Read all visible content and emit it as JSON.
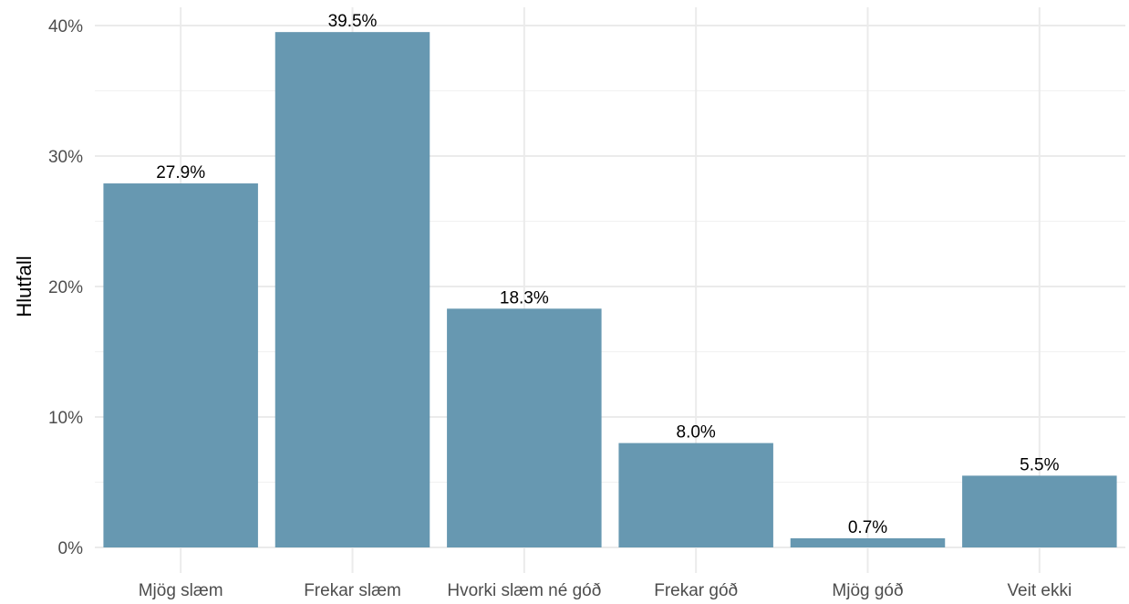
{
  "chart_data": {
    "type": "bar",
    "categories": [
      "Mjög slæm",
      "Frekar slæm",
      "Hvorki slæm né góð",
      "Frekar góð",
      "Mjög góð",
      "Veit ekki"
    ],
    "values": [
      27.9,
      39.5,
      18.3,
      8.0,
      0.7,
      5.5
    ],
    "data_labels": [
      "27.9%",
      "39.5%",
      "18.3%",
      "8.0%",
      "0.7%",
      "5.5%"
    ],
    "title": "",
    "xlabel": "",
    "ylabel": "Hlutfall",
    "ylim": [
      0,
      40
    ],
    "yticks": [
      0,
      10,
      20,
      30,
      40
    ],
    "ytick_labels": [
      "0%",
      "10%",
      "20%",
      "30%",
      "40%"
    ],
    "grid": true,
    "bar_color": "#6798b1"
  }
}
